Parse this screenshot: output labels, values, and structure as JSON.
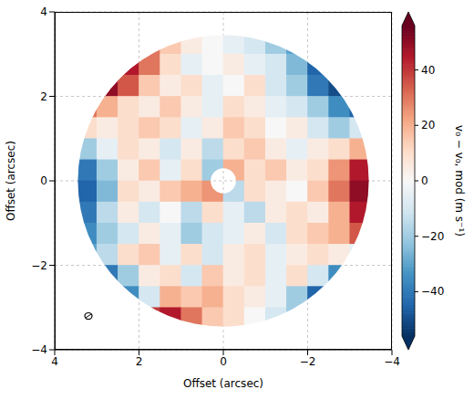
{
  "chart_data": {
    "type": "heatmap",
    "xlabel": "Offset (arcsec)",
    "ylabel": "Offset (arcsec)",
    "xlim": [
      4,
      -4
    ],
    "ylim": [
      -4,
      4
    ],
    "xticks": [
      4,
      2,
      0,
      {
        "value": -2,
        "label": "−2"
      },
      {
        "value": -4,
        "label": "−4"
      }
    ],
    "yticks": [
      {
        "value": -4,
        "label": "−4"
      },
      {
        "value": -2,
        "label": "−2"
      },
      0,
      2,
      4
    ],
    "grid": true,
    "x": [
      3.25,
      2.75,
      2.25,
      1.75,
      1.25,
      0.75,
      0.25,
      -0.25,
      -0.75,
      -1.25,
      -1.75,
      -2.25,
      -2.75,
      -3.25
    ],
    "y": [
      3.25,
      2.75,
      2.25,
      1.75,
      1.25,
      0.75,
      0.25,
      -0.25,
      -0.75,
      -1.25,
      -1.75,
      -2.25,
      -2.75,
      -3.25
    ],
    "values": [
      [
        null,
        null,
        null,
        30,
        15,
        5,
        0,
        -5,
        -10,
        -20,
        -30,
        null,
        null,
        null
      ],
      [
        null,
        null,
        45,
        30,
        10,
        -5,
        0,
        5,
        -5,
        -10,
        -25,
        -45,
        null,
        null
      ],
      [
        null,
        50,
        35,
        15,
        5,
        10,
        -5,
        0,
        10,
        -10,
        -20,
        -40,
        -50,
        null
      ],
      [
        30,
        20,
        10,
        5,
        15,
        5,
        -5,
        10,
        5,
        -5,
        -10,
        -20,
        -35,
        -45
      ],
      [
        10,
        5,
        10,
        15,
        10,
        -5,
        5,
        15,
        10,
        0,
        5,
        -10,
        -20,
        -10
      ],
      [
        -20,
        -5,
        10,
        5,
        -10,
        5,
        -15,
        10,
        15,
        5,
        -5,
        5,
        10,
        20
      ],
      [
        -40,
        -20,
        5,
        15,
        -5,
        10,
        -20,
        20,
        10,
        15,
        5,
        10,
        25,
        45
      ],
      [
        -45,
        -25,
        10,
        5,
        15,
        20,
        25,
        -15,
        10,
        5,
        0,
        15,
        30,
        50
      ],
      [
        -40,
        -15,
        5,
        -10,
        0,
        -15,
        10,
        -5,
        -15,
        5,
        10,
        5,
        20,
        45
      ],
      [
        -35,
        -20,
        -10,
        5,
        -5,
        -20,
        -10,
        -5,
        5,
        -10,
        10,
        15,
        20,
        35
      ],
      [
        -30,
        -15,
        10,
        15,
        -5,
        10,
        -10,
        5,
        10,
        -5,
        5,
        10,
        5,
        -5
      ],
      [
        null,
        -40,
        -20,
        5,
        10,
        -10,
        15,
        5,
        10,
        -5,
        10,
        -10,
        -35,
        null
      ],
      [
        null,
        null,
        -35,
        -10,
        20,
        15,
        20,
        10,
        5,
        -5,
        -20,
        -45,
        null,
        null
      ],
      [
        null,
        null,
        null,
        40,
        45,
        30,
        15,
        10,
        0,
        -10,
        -20,
        null,
        null,
        null
      ]
    ],
    "disk_radius": 3.45,
    "inner_radius": 0.3,
    "clim": [
      -56,
      56
    ],
    "cticks": [
      {
        "value": -40,
        "label": "−40"
      },
      {
        "value": -20,
        "label": "−20"
      },
      0,
      20,
      40
    ],
    "colorbar_label": "v₀ − v₀, mod (m s⁻¹)",
    "beam": {
      "x": 3.2,
      "y": -3.2
    }
  }
}
